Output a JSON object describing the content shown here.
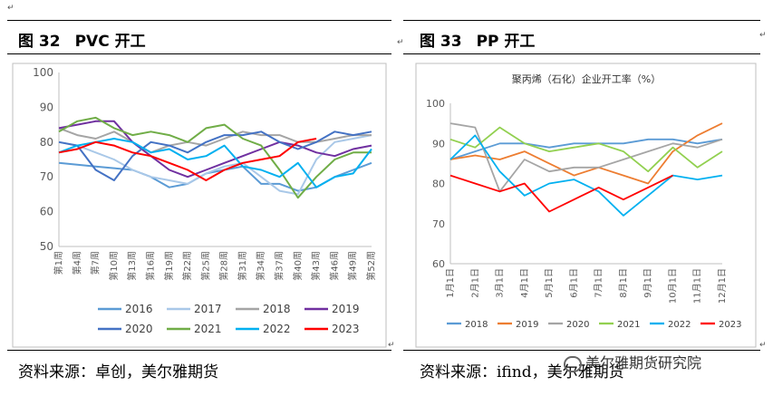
{
  "left_panel": {
    "figure_number": "图 32",
    "figure_title": "PVC 开工",
    "source": "资料来源：卓创，美尔雅期货"
  },
  "right_panel": {
    "figure_number": "图 33",
    "figure_title": "PP 开工",
    "source": "资料来源：ifind，美尔雅期货"
  },
  "watermark": "美尔雅期货研究院",
  "chart_data": [
    {
      "type": "line",
      "title": "",
      "xlabel": "",
      "ylabel": "",
      "ylim": [
        50,
        100
      ],
      "yticks": [
        50,
        60,
        70,
        80,
        90,
        100
      ],
      "grid": false,
      "legend_position": "bottom",
      "categories": [
        "第1周",
        "第4周",
        "第7周",
        "第10周",
        "第13周",
        "第16周",
        "第19周",
        "第22周",
        "第25周",
        "第28周",
        "第31周",
        "第34周",
        "第37周",
        "第40周",
        "第43周",
        "第46周",
        "第49周",
        "第52周"
      ],
      "series": [
        {
          "name": "2016",
          "color": "#5b9bd5",
          "values": [
            74,
            73.5,
            73,
            72.5,
            72,
            70,
            67,
            68,
            71,
            72,
            73,
            68,
            68,
            66,
            67,
            70,
            72,
            74
          ]
        },
        {
          "name": "2017",
          "color": "#a9c8e8",
          "values": [
            80,
            79,
            77,
            75,
            72,
            70,
            69,
            68,
            71,
            73,
            74,
            70,
            66,
            65,
            75,
            80,
            81,
            82
          ]
        },
        {
          "name": "2018",
          "color": "#a5a5a5",
          "values": [
            84,
            82,
            81,
            83,
            80,
            77,
            79,
            80,
            79,
            81,
            83,
            82,
            82,
            80,
            80,
            81,
            82,
            82
          ]
        },
        {
          "name": "2019",
          "color": "#7030a0",
          "values": [
            84,
            85,
            86,
            86,
            80,
            76,
            72,
            70,
            72,
            74,
            76,
            78,
            80,
            79,
            77,
            76,
            78,
            79
          ]
        },
        {
          "name": "2020",
          "color": "#4472c4",
          "values": [
            80,
            79,
            72,
            69,
            76,
            80,
            79,
            77,
            80,
            82,
            82,
            83,
            80,
            78,
            80,
            83,
            82,
            83
          ]
        },
        {
          "name": "2021",
          "color": "#70ad47",
          "values": [
            83,
            86,
            87,
            84,
            82,
            83,
            82,
            80,
            84,
            85,
            81,
            79,
            72,
            64,
            70,
            75,
            77,
            77
          ]
        },
        {
          "name": "2022",
          "color": "#00b0f0",
          "values": [
            77,
            79,
            80,
            81,
            80,
            77,
            78,
            75,
            76,
            79,
            73,
            72,
            70,
            74,
            67,
            70,
            71,
            78
          ]
        },
        {
          "name": "2023",
          "color": "#ff0000",
          "values": [
            77,
            78,
            80,
            79,
            77,
            76,
            74,
            72,
            69,
            72,
            74,
            75,
            76,
            80,
            81,
            null,
            null,
            null
          ]
        }
      ]
    },
    {
      "type": "line",
      "title": "聚丙烯（石化）企业开工率（%）",
      "xlabel": "",
      "ylabel": "",
      "ylim": [
        60,
        100
      ],
      "yticks": [
        60,
        70,
        80,
        90,
        100
      ],
      "grid": false,
      "legend_position": "bottom",
      "categories": [
        "1月1日",
        "2月1日",
        "3月1日",
        "4月1日",
        "5月1日",
        "6月1日",
        "7月1日",
        "8月1日",
        "9月1日",
        "10月1日",
        "11月1日",
        "12月1日"
      ],
      "series": [
        {
          "name": "2018",
          "color": "#5b9bd5",
          "values": [
            86,
            88,
            90,
            90,
            89,
            90,
            90,
            90,
            91,
            91,
            90,
            91
          ]
        },
        {
          "name": "2019",
          "color": "#ed7d31",
          "values": [
            86,
            87,
            86,
            88,
            85,
            82,
            84,
            82,
            80,
            88,
            92,
            95
          ]
        },
        {
          "name": "2020",
          "color": "#a5a5a5",
          "values": [
            95,
            94,
            78,
            86,
            83,
            84,
            84,
            86,
            88,
            90,
            89,
            91
          ]
        },
        {
          "name": "2021",
          "color": "#92d050",
          "values": [
            91,
            89,
            94,
            90,
            88,
            89,
            90,
            88,
            83,
            89,
            84,
            88
          ]
        },
        {
          "name": "2022",
          "color": "#00b0f0",
          "values": [
            86,
            92,
            83,
            77,
            80,
            81,
            78,
            72,
            77,
            82,
            81,
            82
          ]
        },
        {
          "name": "2023",
          "color": "#ff0000",
          "values": [
            82,
            80,
            78,
            80,
            73,
            76,
            79,
            76,
            79,
            82,
            null,
            null
          ]
        }
      ]
    }
  ]
}
